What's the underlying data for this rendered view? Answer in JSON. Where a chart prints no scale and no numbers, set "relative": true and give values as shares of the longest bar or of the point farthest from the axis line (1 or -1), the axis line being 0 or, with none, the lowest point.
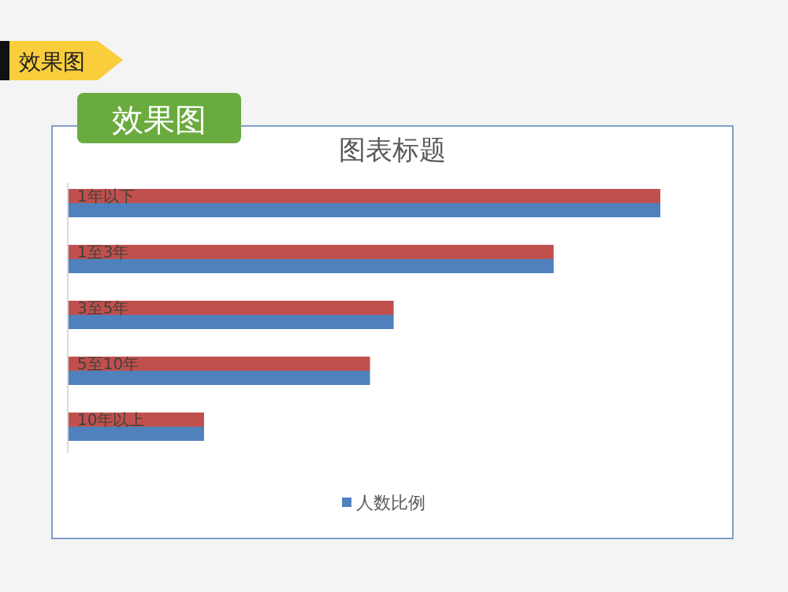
{
  "chart_data": {
    "type": "bar",
    "orientation": "horizontal",
    "relative": true,
    "title": "图表标题",
    "categories": [
      "1年以下",
      "1至3年",
      "3至5年",
      "5至10年",
      "10年以上"
    ],
    "series": [
      {
        "color": "#c0504d",
        "values": [
          1,
          0.82,
          0.55,
          0.51,
          0.23
        ]
      },
      {
        "name": "人数比例",
        "color": "#4f81bd",
        "values": [
          1,
          0.82,
          0.55,
          0.51,
          0.23
        ]
      }
    ],
    "legend": "bottom",
    "annotations": [
      "效果图",
      "效果图"
    ]
  }
}
